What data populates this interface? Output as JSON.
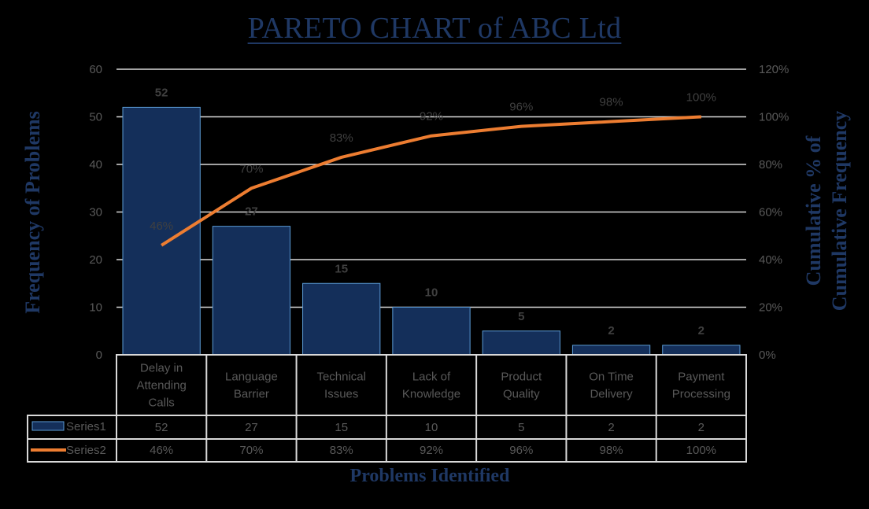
{
  "title": "PARETO CHART of ABC Ltd",
  "axes": {
    "y_left_title": "Frequency of Problems",
    "y_right_title_line1": "Cumulative % of",
    "y_right_title_line2": "Cumulative Frequency",
    "x_title": "Problems Identified",
    "y_left_ticks": [
      "0",
      "10",
      "20",
      "30",
      "40",
      "50",
      "60"
    ],
    "y_right_ticks": [
      "0%",
      "20%",
      "40%",
      "60%",
      "80%",
      "100%",
      "120%"
    ]
  },
  "legend": {
    "series1": "Series1",
    "series2": "Series2"
  },
  "colors": {
    "bar_fill": "#142f5a",
    "bar_border": "#5b9bd5",
    "line": "#ed7d31",
    "title": "#1f3864",
    "grid": "#d9d9d9"
  },
  "chart_data": {
    "type": "bar",
    "title": "PARETO CHART of ABC Ltd",
    "xlabel": "Problems Identified",
    "ylabel": "Frequency of Problems",
    "y2label": "Cumulative % of Cumulative Frequency",
    "categories": [
      "Delay in Attending Calls",
      "Language Barrier",
      "Technical Issues",
      "Lack of Knowledge",
      "Product Quality",
      "On Time Delivery",
      "Payment Processing"
    ],
    "category_lines": [
      [
        "Delay in",
        "Attending",
        "Calls"
      ],
      [
        "Language",
        "Barrier"
      ],
      [
        "Technical",
        "Issues"
      ],
      [
        "Lack of",
        "Knowledge"
      ],
      [
        "Product",
        "Quality"
      ],
      [
        "On Time",
        "Delivery"
      ],
      [
        "Payment",
        "Processing"
      ]
    ],
    "series": [
      {
        "name": "Series1",
        "type": "bar",
        "axis": "left",
        "values": [
          52,
          27,
          15,
          10,
          5,
          2,
          2
        ],
        "labels": [
          "52",
          "27",
          "15",
          "10",
          "5",
          "2",
          "2"
        ]
      },
      {
        "name": "Series2",
        "type": "line",
        "axis": "right",
        "values": [
          46,
          70,
          83,
          92,
          96,
          98,
          100
        ],
        "labels": [
          "46%",
          "70%",
          "83%",
          "92%",
          "96%",
          "98%",
          "100%"
        ]
      }
    ],
    "ylim": [
      0,
      60
    ],
    "y2lim": [
      0,
      120
    ],
    "grid": true,
    "legend_position": "data-table"
  }
}
